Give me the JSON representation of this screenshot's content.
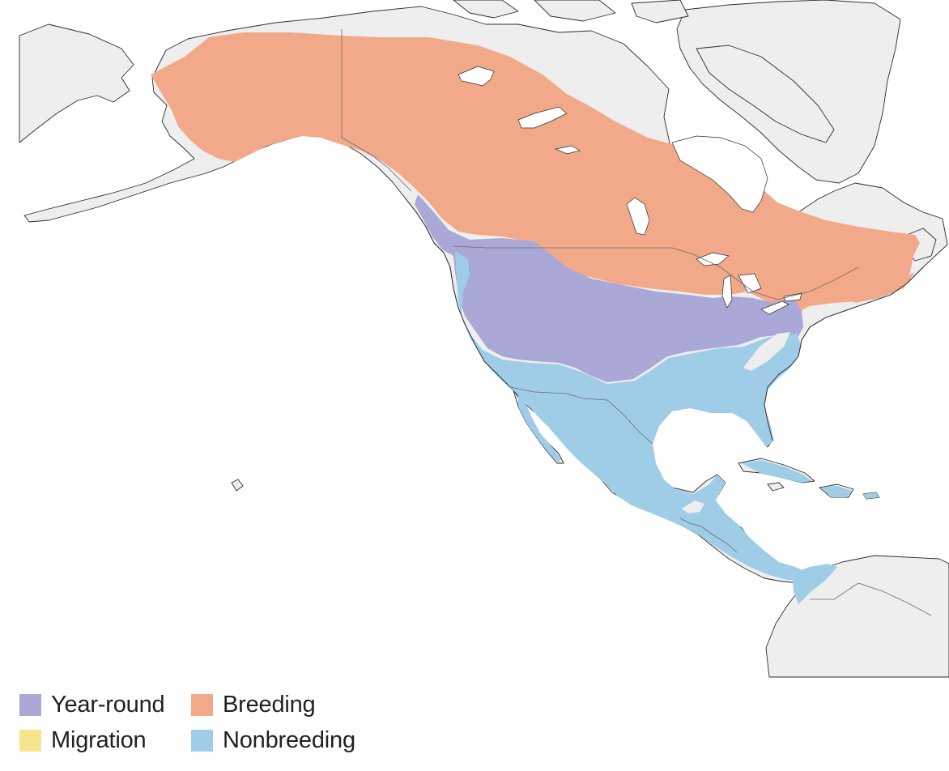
{
  "colors": {
    "land": "#eeeeee",
    "coast": "#2b2b2b",
    "border": "#6b6b6b",
    "water": "#ffffff",
    "year_round": "#a9a8d6",
    "breeding": "#f2a98a",
    "migration": "#f7e58d",
    "nonbreeding": "#9fcde8"
  },
  "legend": {
    "year_round": "Year-round",
    "breeding": "Breeding",
    "migration": "Migration",
    "nonbreeding": "Nonbreeding"
  }
}
